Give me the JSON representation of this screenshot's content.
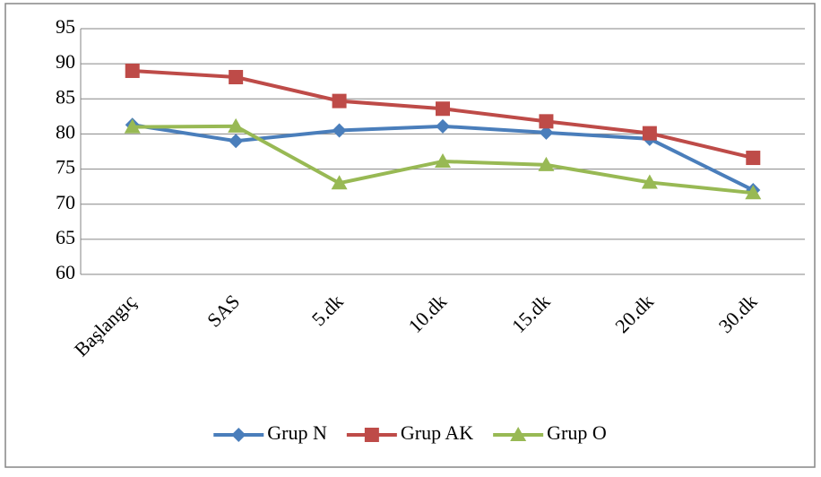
{
  "chart_data": {
    "type": "line",
    "categories": [
      "Başlangıç",
      "SAS",
      "5.dk",
      "10.dk",
      "15.dk",
      "20.dk",
      "30.dk"
    ],
    "series": [
      {
        "name": "Grup N",
        "color": "#4a7ebb",
        "marker": "diamond",
        "values": [
          81.3,
          79,
          80.5,
          81.1,
          80.2,
          79.3,
          72
        ]
      },
      {
        "name": "Grup AK",
        "color": "#be4b48",
        "marker": "square",
        "values": [
          89,
          88.1,
          84.7,
          83.6,
          81.8,
          80.1,
          76.6
        ]
      },
      {
        "name": "Grup O",
        "color": "#98b954",
        "marker": "triangle",
        "values": [
          81,
          81.1,
          73,
          76.1,
          75.6,
          73.1,
          71.6
        ]
      }
    ],
    "ylim": [
      60,
      95
    ],
    "yticks": [
      60,
      65,
      70,
      75,
      80,
      85,
      90,
      95
    ],
    "grid": true,
    "legend": "bottom"
  }
}
